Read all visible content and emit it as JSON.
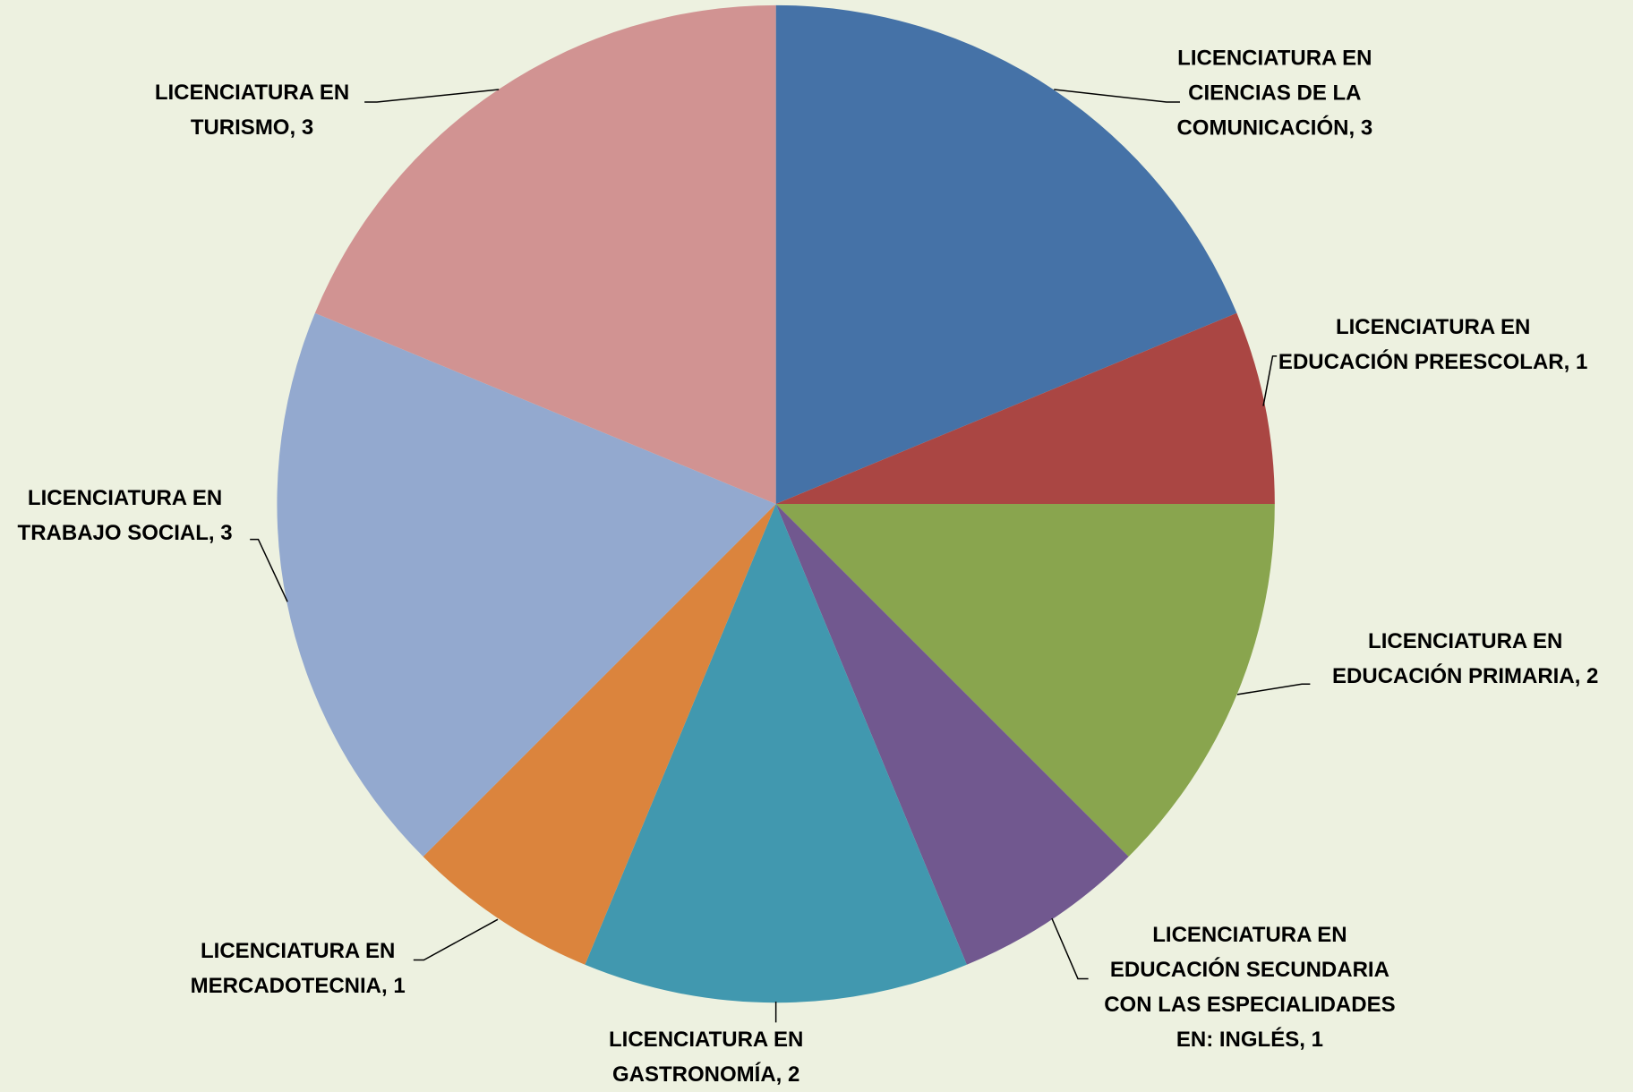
{
  "chart_data": {
    "type": "pie",
    "categories": [
      "LICENCIATURA EN CIENCIAS DE LA COMUNICACIÓN",
      "LICENCIATURA EN EDUCACIÓN PREESCOLAR",
      "LICENCIATURA EN EDUCACIÓN PRIMARIA",
      "LICENCIATURA EN EDUCACIÓN SECUNDARIA CON LAS ESPECIALIDADES EN: INGLÉS",
      "LICENCIATURA EN GASTRONOMÍA",
      "LICENCIATURA EN MERCADOTECNIA",
      "LICENCIATURA EN TRABAJO SOCIAL",
      "LICENCIATURA EN TURISMO"
    ],
    "values": [
      3,
      1,
      2,
      1,
      2,
      1,
      3,
      3
    ],
    "colors": [
      "#4572a7",
      "#aa4643",
      "#89a54e",
      "#71588f",
      "#4198af",
      "#db843d",
      "#93a9cf",
      "#d19392"
    ]
  }
}
